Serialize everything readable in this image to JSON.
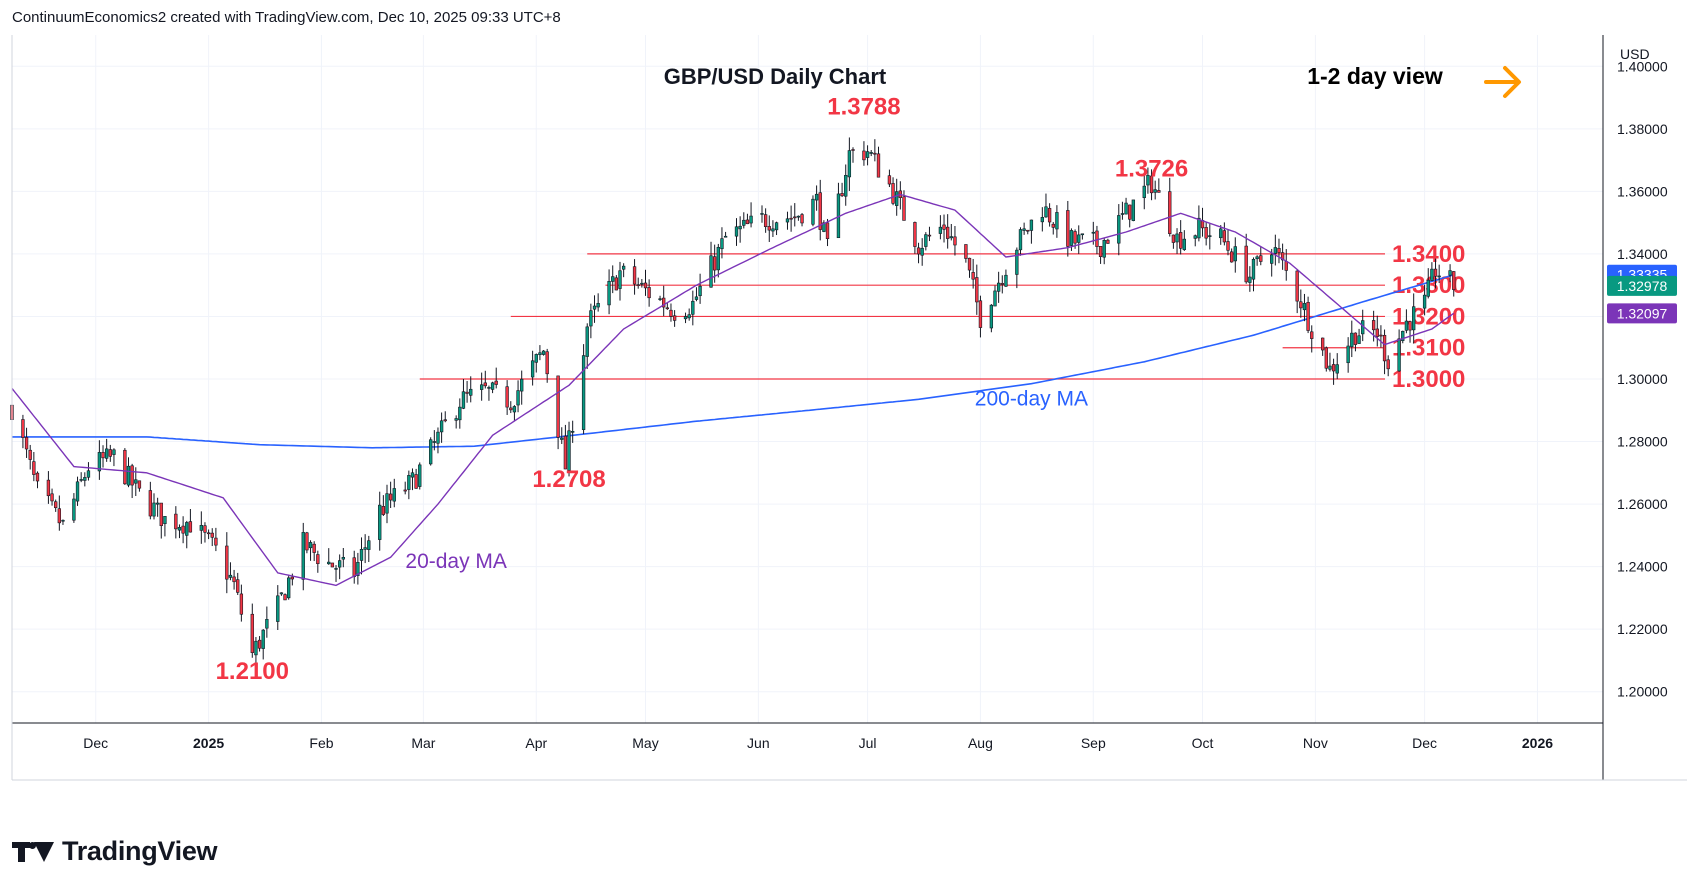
{
  "header": {
    "attribution": "ContinuumEconomics2 created with TradingView.com, Dec 10, 2025 09:33 UTC+8"
  },
  "footer": {
    "brand": "TradingView"
  },
  "axis": {
    "currency": "USD"
  },
  "colors": {
    "up": "#089981",
    "down": "#f23645",
    "ma20": "#7b35b8",
    "ma200": "#2962ff",
    "levels": "#f23645",
    "arrow": "#ff9800",
    "grid": "#f0f3fa"
  },
  "chart_data": {
    "type": "candlestick",
    "title": "GBP/USD Daily Chart",
    "view_label": "1-2 day view",
    "view_arrow": "arrow-right",
    "ylim": [
      1.19,
      1.41
    ],
    "y_ticks": [
      "1.20000",
      "1.22000",
      "1.24000",
      "1.26000",
      "1.28000",
      "1.30000",
      "1.32000",
      "1.34000",
      "1.36000",
      "1.38000",
      "1.40000"
    ],
    "x_ticks": [
      {
        "label": "Dec",
        "x": "2024-12-01"
      },
      {
        "label": "2025",
        "x": "2025-01-01",
        "bold": true
      },
      {
        "label": "Feb",
        "x": "2025-02-01"
      },
      {
        "label": "Mar",
        "x": "2025-03-01"
      },
      {
        "label": "Apr",
        "x": "2025-04-01"
      },
      {
        "label": "May",
        "x": "2025-05-01"
      },
      {
        "label": "Jun",
        "x": "2025-06-01"
      },
      {
        "label": "Jul",
        "x": "2025-07-01"
      },
      {
        "label": "Aug",
        "x": "2025-08-01"
      },
      {
        "label": "Sep",
        "x": "2025-09-01"
      },
      {
        "label": "Oct",
        "x": "2025-10-01"
      },
      {
        "label": "Nov",
        "x": "2025-11-01"
      },
      {
        "label": "Dec",
        "x": "2025-12-01"
      },
      {
        "label": "2026",
        "x": "2026-01-01",
        "bold": true
      }
    ],
    "xlim": [
      "2024-11-08",
      "2026-01-19"
    ],
    "price_labels": [
      {
        "value": 1.33335,
        "text": "1.33335",
        "color": "#2962ff"
      },
      {
        "value": 1.32978,
        "text": "1.32978",
        "color": "#089981"
      },
      {
        "value": 1.32097,
        "text": "1.32097",
        "color": "#7b35b8"
      }
    ],
    "levels": [
      {
        "value": 1.34,
        "label": "1.3400",
        "from": "2025-04-15"
      },
      {
        "value": 1.33,
        "label": "1.3300",
        "from": "2025-04-20"
      },
      {
        "value": 1.32,
        "label": "1.3200",
        "from": "2025-03-25"
      },
      {
        "value": 1.31,
        "label": "1.3100",
        "from": "2025-10-23"
      },
      {
        "value": 1.3,
        "label": "1.3000",
        "from": "2025-02-28"
      }
    ],
    "annotations": [
      {
        "text": "1.3788",
        "x": "2025-06-30",
        "y": 1.3845
      },
      {
        "text": "1.3726",
        "x": "2025-09-17",
        "y": 1.3647
      },
      {
        "text": "1.2708",
        "x": "2025-04-10",
        "y": 1.2655
      },
      {
        "text": "1.2100",
        "x": "2025-01-13",
        "y": 1.204
      },
      {
        "text": "20-day MA",
        "x": "2025-03-10",
        "y": 1.2395,
        "color": "#7b35b8"
      },
      {
        "text": "200-day MA",
        "x": "2025-08-15",
        "y": 1.2915,
        "color": "#2962ff"
      }
    ],
    "series": [
      {
        "name": "GBP/USD",
        "kind": "ohlc",
        "anchors": [
          [
            "2024-11-08",
            1.291
          ],
          [
            "2024-11-15",
            1.264
          ],
          [
            "2024-11-22",
            1.253
          ],
          [
            "2024-11-29",
            1.272
          ],
          [
            "2024-12-06",
            1.275
          ],
          [
            "2024-12-13",
            1.263
          ],
          [
            "2024-12-20",
            1.255
          ],
          [
            "2024-12-27",
            1.254
          ],
          [
            "2025-01-03",
            1.245
          ],
          [
            "2025-01-08",
            1.234
          ],
          [
            "2025-01-13",
            1.212
          ],
          [
            "2025-01-20",
            1.227
          ],
          [
            "2025-01-27",
            1.247
          ],
          [
            "2025-02-03",
            1.241
          ],
          [
            "2025-02-10",
            1.238
          ],
          [
            "2025-02-17",
            1.258
          ],
          [
            "2025-02-26",
            1.267
          ],
          [
            "2025-03-04",
            1.279
          ],
          [
            "2025-03-11",
            1.293
          ],
          [
            "2025-03-18",
            1.296
          ],
          [
            "2025-03-25",
            1.293
          ],
          [
            "2025-04-03",
            1.309
          ],
          [
            "2025-04-09",
            1.272
          ],
          [
            "2025-04-15",
            1.317
          ],
          [
            "2025-04-24",
            1.334
          ],
          [
            "2025-04-30",
            1.329
          ],
          [
            "2025-05-09",
            1.322
          ],
          [
            "2025-05-14",
            1.324
          ],
          [
            "2025-05-23",
            1.345
          ],
          [
            "2025-06-02",
            1.351
          ],
          [
            "2025-06-11",
            1.352
          ],
          [
            "2025-06-17",
            1.357
          ],
          [
            "2025-06-20",
            1.341
          ],
          [
            "2025-06-26",
            1.372
          ],
          [
            "2025-07-01",
            1.373
          ],
          [
            "2025-07-07",
            1.362
          ],
          [
            "2025-07-15",
            1.343
          ],
          [
            "2025-07-22",
            1.349
          ],
          [
            "2025-07-28",
            1.337
          ],
          [
            "2025-08-01",
            1.32
          ],
          [
            "2025-08-11",
            1.343
          ],
          [
            "2025-08-18",
            1.355
          ],
          [
            "2025-08-26",
            1.344
          ],
          [
            "2025-09-03",
            1.343
          ],
          [
            "2025-09-10",
            1.353
          ],
          [
            "2025-09-17",
            1.363
          ],
          [
            "2025-09-24",
            1.345
          ],
          [
            "2025-09-30",
            1.348
          ],
          [
            "2025-10-06",
            1.345
          ],
          [
            "2025-10-14",
            1.333
          ],
          [
            "2025-10-20",
            1.343
          ],
          [
            "2025-10-28",
            1.325
          ],
          [
            "2025-11-05",
            1.303
          ],
          [
            "2025-11-12",
            1.315
          ],
          [
            "2025-11-18",
            1.315
          ],
          [
            "2025-11-21",
            1.306
          ],
          [
            "2025-11-26",
            1.318
          ],
          [
            "2025-12-01",
            1.324
          ],
          [
            "2025-12-04",
            1.335
          ],
          [
            "2025-12-09",
            1.3298
          ]
        ]
      },
      {
        "name": "20-day MA",
        "anchors": [
          [
            "2024-11-08",
            1.297
          ],
          [
            "2024-11-25",
            1.272
          ],
          [
            "2024-12-15",
            1.27
          ],
          [
            "2025-01-05",
            1.262
          ],
          [
            "2025-01-20",
            1.238
          ],
          [
            "2025-02-05",
            1.234
          ],
          [
            "2025-02-20",
            1.243
          ],
          [
            "2025-03-05",
            1.26
          ],
          [
            "2025-03-20",
            1.282
          ],
          [
            "2025-04-10",
            1.298
          ],
          [
            "2025-04-25",
            1.316
          ],
          [
            "2025-05-15",
            1.33
          ],
          [
            "2025-06-05",
            1.342
          ],
          [
            "2025-06-25",
            1.353
          ],
          [
            "2025-07-10",
            1.359
          ],
          [
            "2025-07-25",
            1.354
          ],
          [
            "2025-08-08",
            1.339
          ],
          [
            "2025-08-25",
            1.342
          ],
          [
            "2025-09-10",
            1.347
          ],
          [
            "2025-09-25",
            1.353
          ],
          [
            "2025-10-10",
            1.347
          ],
          [
            "2025-10-25",
            1.337
          ],
          [
            "2025-11-05",
            1.326
          ],
          [
            "2025-11-20",
            1.311
          ],
          [
            "2025-12-03",
            1.316
          ],
          [
            "2025-12-09",
            1.321
          ]
        ]
      },
      {
        "name": "200-day MA",
        "anchors": [
          [
            "2024-11-08",
            1.2815
          ],
          [
            "2024-12-15",
            1.2815
          ],
          [
            "2025-01-15",
            1.279
          ],
          [
            "2025-02-15",
            1.278
          ],
          [
            "2025-03-15",
            1.2785
          ],
          [
            "2025-04-15",
            1.2825
          ],
          [
            "2025-05-15",
            1.2865
          ],
          [
            "2025-06-15",
            1.29
          ],
          [
            "2025-07-15",
            1.2935
          ],
          [
            "2025-08-15",
            1.2985
          ],
          [
            "2025-09-15",
            1.3055
          ],
          [
            "2025-10-15",
            1.314
          ],
          [
            "2025-11-15",
            1.325
          ],
          [
            "2025-12-09",
            1.3333
          ]
        ]
      }
    ]
  }
}
